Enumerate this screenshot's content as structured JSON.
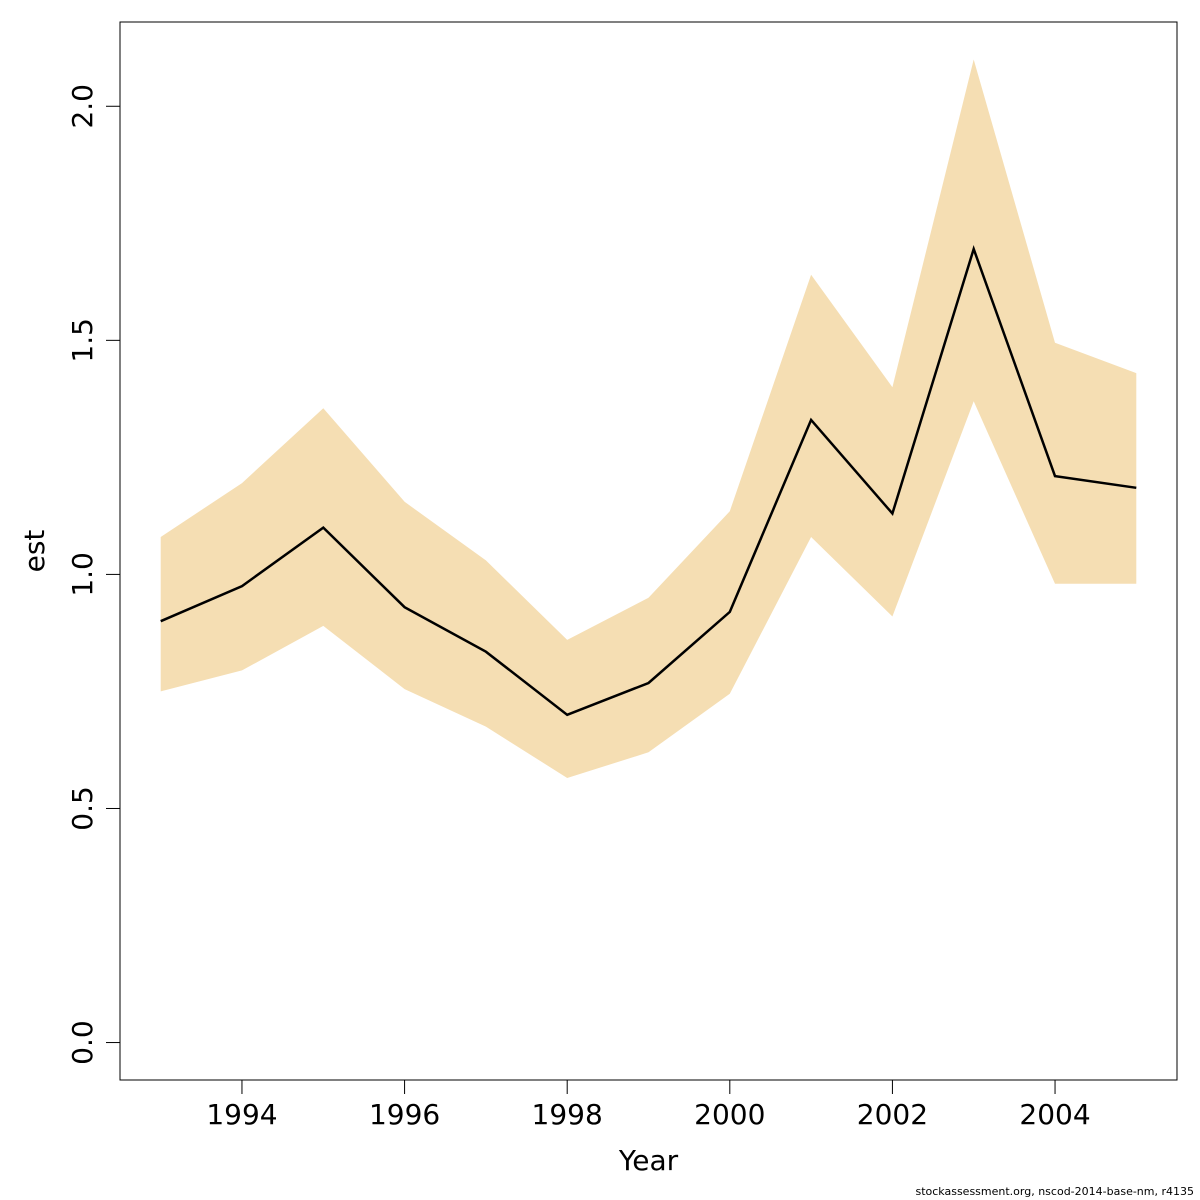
{
  "chart_data": {
    "type": "line",
    "x": [
      1993,
      1994,
      1995,
      1996,
      1997,
      1998,
      1999,
      2000,
      2001,
      2002,
      2003,
      2004,
      2005
    ],
    "series": [
      {
        "values": [
          0.9,
          0.975,
          1.1,
          0.93,
          0.835,
          0.7,
          0.768,
          0.92,
          1.33,
          1.13,
          1.695,
          1.21,
          1.185
        ],
        "lower": [
          0.75,
          0.795,
          0.89,
          0.755,
          0.675,
          0.565,
          0.62,
          0.745,
          1.08,
          0.91,
          1.37,
          0.98,
          0.98
        ],
        "upper": [
          1.08,
          1.195,
          1.355,
          1.155,
          1.03,
          0.86,
          0.95,
          1.135,
          1.64,
          1.4,
          2.1,
          1.495,
          1.43
        ]
      }
    ],
    "xlabel": "Year",
    "ylabel": "est",
    "xlim": [
      1992.5,
      2005.5
    ],
    "ylim": [
      -0.08,
      2.18
    ],
    "xticks": [
      1994,
      1996,
      1998,
      2000,
      2002,
      2004
    ],
    "yticks": [
      0.0,
      0.5,
      1.0,
      1.5,
      2.0
    ],
    "ytick_labels": [
      "0.0",
      "0.5",
      "1.0",
      "1.5",
      "2.0"
    ],
    "grid": false,
    "band_color": "#F5DEB3",
    "line_color": "#000000"
  },
  "footer": "stockassessment.org, nscod-2014-base-nm, r4135"
}
